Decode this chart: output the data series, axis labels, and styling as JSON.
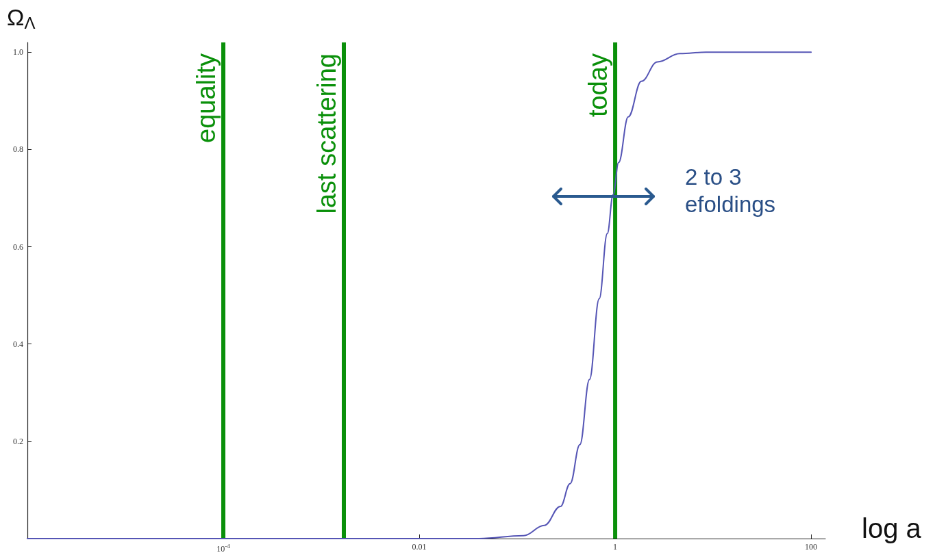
{
  "chart_data": {
    "type": "line",
    "xlabel": "log a",
    "ylabel": "Ω$_{Λ}$",
    "log": "x",
    "xlim": [
      1e-06,
      140
    ],
    "ylim": [
      0,
      1.02
    ],
    "xticks": [
      {
        "value": 0.0001,
        "label": "10$^{-4}$"
      },
      0.01,
      1,
      100
    ],
    "yticks": [
      0.2,
      0.4,
      0.6,
      0.8,
      {
        "value": 1,
        "label": "1.0"
      }
    ],
    "grid": false,
    "marker": "none",
    "line_style": "solid",
    "series": [
      {
        "color": "#5555b5",
        "x": [
          1e-06,
          0.001,
          0.041,
          0.116,
          0.189,
          0.276,
          0.347,
          0.436,
          0.547,
          0.687,
          0.831,
          0.953,
          1.084,
          1.36,
          1.85,
          2.7,
          4.59,
          8.45,
          100
        ],
        "values": [
          0,
          0,
          0,
          0.006,
          0.027,
          0.066,
          0.113,
          0.193,
          0.327,
          0.493,
          0.627,
          0.707,
          0.773,
          0.867,
          0.94,
          0.98,
          0.997,
          1,
          1
        ]
      }
    ],
    "ref_lines": [
      {
        "axis": "x",
        "value": 0.0001,
        "label": "equality",
        "color": "#0a900a"
      },
      {
        "axis": "x",
        "value": 0.0017,
        "label": "last scattering",
        "color": "#0a900a"
      },
      {
        "axis": "x",
        "value": 1,
        "label": "today",
        "color": "#0a900a"
      }
    ],
    "annotations": [
      "2 to 3\nefoldings"
    ]
  }
}
